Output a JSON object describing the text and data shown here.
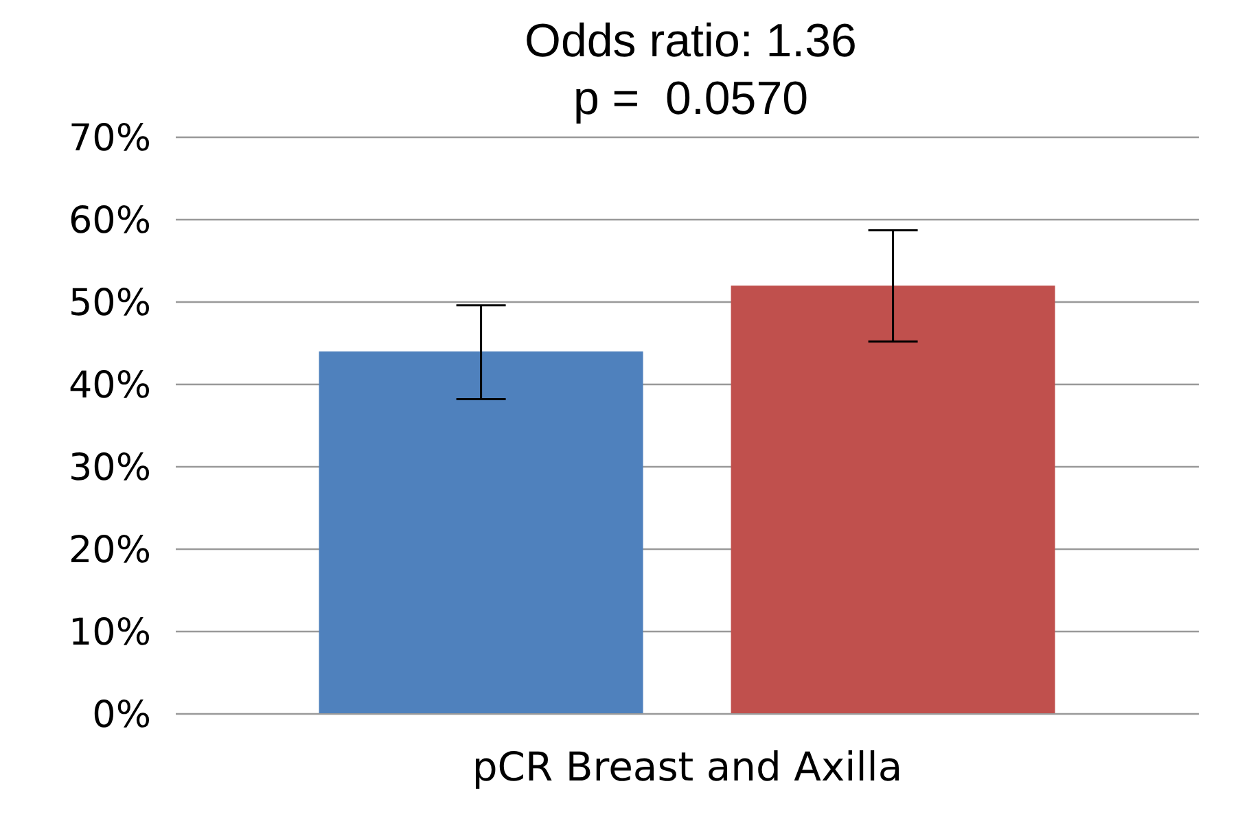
{
  "chart_data": {
    "type": "bar",
    "title": "Odds ratio: 1.36",
    "subtitle": "p =  0.0570",
    "categories": [
      "pCR Breast and Axilla"
    ],
    "series": [
      {
        "color": "#4f81bd",
        "values": [
          44
        ],
        "errors": [
          [
            38.2,
            49.6
          ]
        ]
      },
      {
        "color": "#c0504d",
        "values": [
          52
        ],
        "errors": [
          [
            45.2,
            58.7
          ]
        ]
      }
    ],
    "ylim": [
      0,
      70
    ],
    "yticks": [
      {
        "value": 0,
        "label": "0%"
      },
      {
        "value": 10,
        "label": "10%"
      },
      {
        "value": 20,
        "label": "20%"
      },
      {
        "value": 30,
        "label": "30%"
      },
      {
        "value": 40,
        "label": "40%"
      },
      {
        "value": 50,
        "label": "50%"
      },
      {
        "value": 60,
        "label": "60%"
      },
      {
        "value": 70,
        "label": "70%"
      }
    ],
    "grid": "y",
    "legend": false
  }
}
